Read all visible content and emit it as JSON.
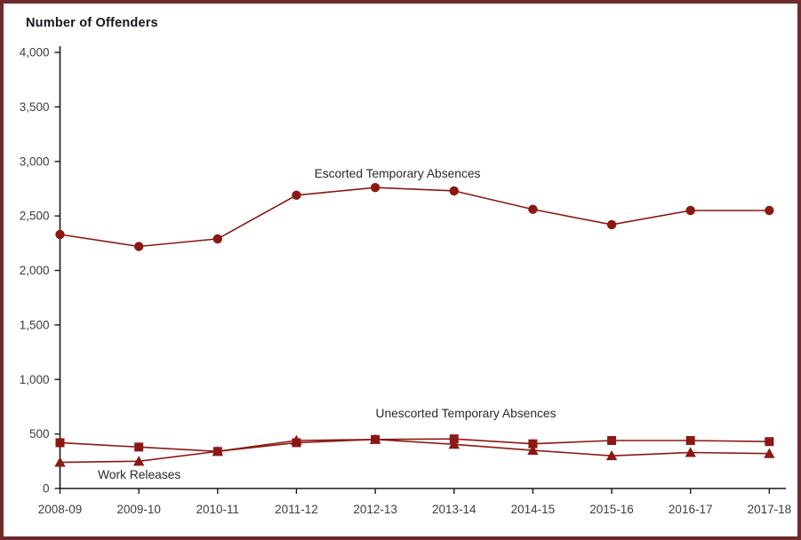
{
  "chart_data": {
    "type": "line",
    "title": "Number of Offenders",
    "xlabel": "",
    "ylabel": "Number of Offenders",
    "categories": [
      "2008-09",
      "2009-10",
      "2010-11",
      "2011-12",
      "2012-13",
      "2013-14",
      "2014-15",
      "2015-16",
      "2016-17",
      "2017-18"
    ],
    "series": [
      {
        "name": "Escorted Temporary Absences",
        "marker": "circle",
        "values": [
          2330,
          2220,
          2290,
          2690,
          2760,
          2730,
          2560,
          2420,
          2550,
          2550
        ]
      },
      {
        "name": "Unescorted Temporary Absences",
        "marker": "square",
        "values": [
          420,
          380,
          340,
          420,
          450,
          455,
          410,
          440,
          440,
          430
        ]
      },
      {
        "name": "Work Releases",
        "marker": "triangle",
        "values": [
          240,
          250,
          340,
          440,
          450,
          405,
          350,
          300,
          330,
          320
        ]
      }
    ],
    "ylim": [
      0,
      4000
    ],
    "ytick_step": 500,
    "ytick_labels": [
      "0",
      "500",
      "1,000",
      "1,500",
      "2,000",
      "2,500",
      "3,000",
      "3,500",
      "4,000"
    ],
    "grid": false,
    "legend": "inline-annotations",
    "series_color": "#8b1812",
    "axis_color": "#1a1a1a",
    "tick_label_color": "#3d3d3d",
    "annotation_color": "#2a2a2a",
    "frame_border_color": "#6f2b2b"
  }
}
